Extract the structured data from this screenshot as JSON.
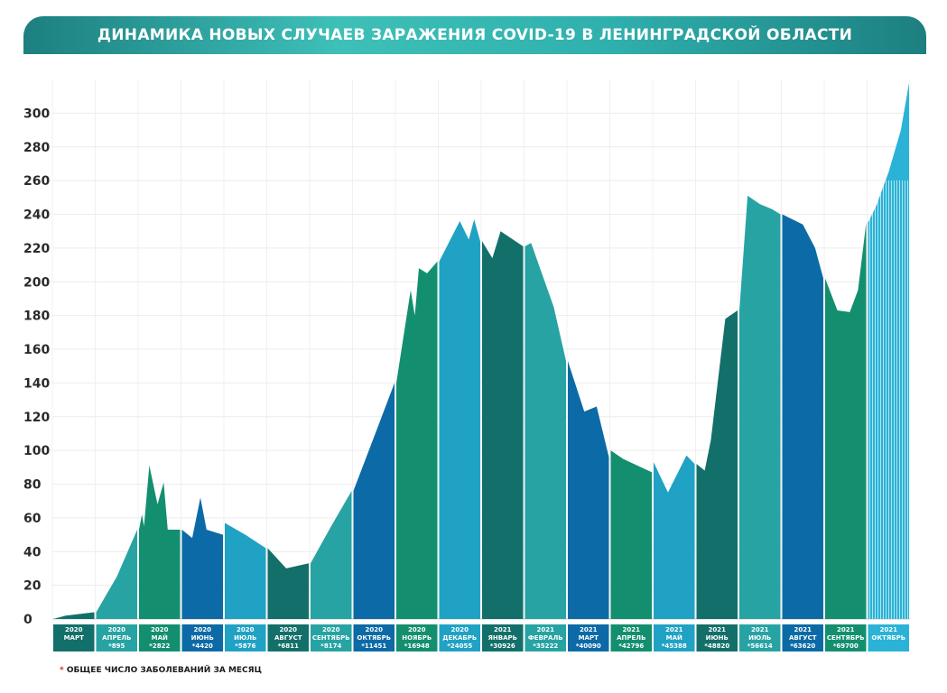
{
  "title": "ДИНАМИКА НОВЫХ СЛУЧАЕВ ЗАРАЖЕНИЯ COVID-19 В ЛЕНИНГРАДСКОЙ ОБЛАСТИ",
  "footnote": {
    "star": "*",
    "text": "ОБЩЕЕ ЧИСЛО ЗАБОЛЕВАНИЙ ЗА МЕСЯЦ"
  },
  "chart_data": {
    "type": "area",
    "title": "ДИНАМИКА НОВЫХ СЛУЧАЕВ ЗАРАЖЕНИЯ COVID-19 В ЛЕНИНГРАДСКОЙ ОБЛАСТИ",
    "ylim": [
      0,
      320
    ],
    "yticks": [
      0,
      20,
      40,
      60,
      80,
      100,
      120,
      140,
      160,
      180,
      200,
      220,
      240,
      260,
      280,
      300
    ],
    "grid": true,
    "months": [
      {
        "year": "2020",
        "name": "МАРТ",
        "total": "",
        "color": "#136f6a",
        "points": [
          [
            0,
            0
          ],
          [
            0.3,
            2
          ],
          [
            1,
            4
          ]
        ]
      },
      {
        "year": "2020",
        "name": "АПРЕЛЬ",
        "total": "*895",
        "color": "#27a3a3",
        "points": [
          [
            0,
            4
          ],
          [
            0.5,
            25
          ],
          [
            1,
            53
          ]
        ]
      },
      {
        "year": "2020",
        "name": "МАЙ",
        "total": "*2822",
        "color": "#138f6f",
        "points": [
          [
            0,
            53
          ],
          [
            0.07,
            62
          ],
          [
            0.12,
            55
          ],
          [
            0.25,
            91
          ],
          [
            0.45,
            68
          ],
          [
            0.6,
            81
          ],
          [
            0.7,
            53
          ],
          [
            1,
            53
          ]
        ]
      },
      {
        "year": "2020",
        "name": "ИЮНЬ",
        "total": "*4420",
        "color": "#0c6aa6",
        "points": [
          [
            0,
            53
          ],
          [
            0.25,
            48
          ],
          [
            0.45,
            72
          ],
          [
            0.6,
            53
          ],
          [
            1,
            50
          ]
        ]
      },
      {
        "year": "2020",
        "name": "ИЮЛЬ",
        "total": "*5876",
        "color": "#20a2c4",
        "points": [
          [
            0,
            57
          ],
          [
            0.5,
            50
          ],
          [
            1,
            42
          ]
        ]
      },
      {
        "year": "2020",
        "name": "АВГУСТ",
        "total": "*6811",
        "color": "#136f6a",
        "points": [
          [
            0,
            42
          ],
          [
            0.45,
            30
          ],
          [
            1,
            33
          ]
        ]
      },
      {
        "year": "2020",
        "name": "СЕНТЯБРЬ",
        "total": "*8174",
        "color": "#27a3a3",
        "points": [
          [
            0,
            33
          ],
          [
            0.5,
            55
          ],
          [
            1,
            76
          ]
        ]
      },
      {
        "year": "2020",
        "name": "ОКТЯБРЬ",
        "total": "*11451",
        "color": "#0c6aa6",
        "points": [
          [
            0,
            76
          ],
          [
            0.5,
            108
          ],
          [
            1,
            140
          ]
        ]
      },
      {
        "year": "2020",
        "name": "НОЯБРЬ",
        "total": "*16948",
        "color": "#138f6f",
        "points": [
          [
            0,
            140
          ],
          [
            0.35,
            195
          ],
          [
            0.45,
            180
          ],
          [
            0.55,
            208
          ],
          [
            0.75,
            205
          ],
          [
            1,
            212
          ]
        ]
      },
      {
        "year": "2020",
        "name": "ДЕКАБРЬ",
        "total": "*24055",
        "color": "#20a2c4",
        "points": [
          [
            0,
            212
          ],
          [
            0.5,
            236
          ],
          [
            0.72,
            225
          ],
          [
            0.85,
            237
          ],
          [
            1,
            224
          ]
        ]
      },
      {
        "year": "2021",
        "name": "ЯНВАРЬ",
        "total": "*30926",
        "color": "#136f6a",
        "points": [
          [
            0,
            224
          ],
          [
            0.25,
            214
          ],
          [
            0.45,
            230
          ],
          [
            1,
            221
          ]
        ]
      },
      {
        "year": "2021",
        "name": "ФЕВРАЛЬ",
        "total": "*35222",
        "color": "#27a3a3",
        "points": [
          [
            0,
            221
          ],
          [
            0.15,
            223
          ],
          [
            0.7,
            185
          ],
          [
            1,
            153
          ]
        ]
      },
      {
        "year": "2021",
        "name": "МАРТ",
        "total": "*40090",
        "color": "#0c6aa6",
        "points": [
          [
            0,
            153
          ],
          [
            0.4,
            123
          ],
          [
            0.7,
            126
          ],
          [
            1,
            96
          ]
        ]
      },
      {
        "year": "2021",
        "name": "АПРЕЛЬ",
        "total": "*42796",
        "color": "#138f6f",
        "points": [
          [
            0,
            100
          ],
          [
            0.3,
            95
          ],
          [
            1,
            87
          ]
        ]
      },
      {
        "year": "2021",
        "name": "МАЙ",
        "total": "*45388",
        "color": "#20a2c4",
        "points": [
          [
            0,
            93
          ],
          [
            0.35,
            75
          ],
          [
            0.8,
            97
          ],
          [
            1,
            92
          ]
        ]
      },
      {
        "year": "2021",
        "name": "ИЮНЬ",
        "total": "*48820",
        "color": "#136f6a",
        "points": [
          [
            0,
            92
          ],
          [
            0.2,
            88
          ],
          [
            0.35,
            106
          ],
          [
            0.7,
            178
          ],
          [
            1,
            183
          ]
        ]
      },
      {
        "year": "2021",
        "name": "ИЮЛЬ",
        "total": "*56614",
        "color": "#27a3a3",
        "points": [
          [
            0,
            183
          ],
          [
            0.2,
            251
          ],
          [
            0.5,
            246
          ],
          [
            0.8,
            243
          ],
          [
            1,
            240
          ]
        ]
      },
      {
        "year": "2021",
        "name": "АВГУСТ",
        "total": "*63620",
        "color": "#0c6aa6",
        "points": [
          [
            0,
            240
          ],
          [
            0.5,
            234
          ],
          [
            0.8,
            220
          ],
          [
            1,
            202
          ]
        ]
      },
      {
        "year": "2021",
        "name": "СЕНТЯБРЬ",
        "total": "*69700",
        "color": "#138f6f",
        "points": [
          [
            0,
            202
          ],
          [
            0.3,
            183
          ],
          [
            0.6,
            182
          ],
          [
            0.8,
            195
          ],
          [
            1,
            235
          ]
        ]
      },
      {
        "year": "2021",
        "name": "ОКТЯБРЬ",
        "total": "",
        "color": "#2ab3d6",
        "points": [
          [
            0,
            235
          ],
          [
            0.2,
            245
          ],
          [
            0.5,
            265
          ],
          [
            0.8,
            290
          ],
          [
            1,
            318
          ]
        ]
      }
    ]
  }
}
